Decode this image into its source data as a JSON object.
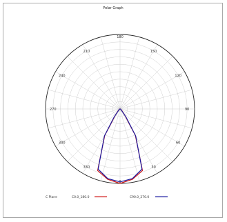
{
  "chart_data": {
    "type": "polar",
    "title": "Polar Graph",
    "angle_ticks": [
      "180",
      "150",
      "120",
      "90",
      "60",
      "30",
      "0",
      "330",
      "300",
      "270",
      "240",
      "210"
    ],
    "radius_max": 100,
    "grid": true,
    "legend": {
      "placement": "bottom",
      "title": "C Plane",
      "entries": [
        {
          "label": "C0.0_180.0",
          "color": "#d01818"
        },
        {
          "label": "C90.0_270.0",
          "color": "#1a1aa0"
        }
      ]
    },
    "series": [
      {
        "name": "C0.0_180.0",
        "color": "#d01818",
        "angles": [
          -90,
          -75,
          -60,
          -45,
          -36,
          -30,
          -20,
          -10,
          0,
          10,
          20,
          30,
          36,
          45,
          60,
          75,
          90
        ],
        "values": [
          0,
          0.5,
          1,
          4,
          12,
          41,
          88,
          96,
          100,
          96,
          88,
          41,
          12,
          4,
          1,
          0.5,
          0
        ]
      },
      {
        "name": "C90.0_270.0",
        "color": "#1a1aa0",
        "angles": [
          -90,
          -75,
          -60,
          -45,
          -36,
          -30,
          -20,
          -10,
          0,
          10,
          20,
          30,
          36,
          45,
          60,
          75,
          90
        ],
        "values": [
          0,
          0.5,
          1,
          3,
          14,
          42,
          86,
          95,
          98,
          95,
          86,
          42,
          14,
          3,
          1,
          0.5,
          0
        ]
      }
    ]
  }
}
